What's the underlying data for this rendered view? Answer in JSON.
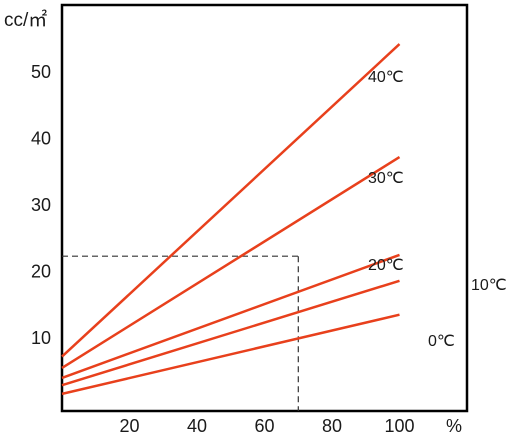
{
  "chart_data": {
    "type": "line",
    "title": "",
    "xlabel": "%",
    "ylabel": "cc/㎡",
    "xlim": [
      0,
      100
    ],
    "ylim": [
      0,
      56
    ],
    "x_ticks": [
      "20",
      "40",
      "60",
      "80",
      "100"
    ],
    "y_ticks": [
      "10",
      "20",
      "30",
      "40",
      "50"
    ],
    "grid": false,
    "legend": "none",
    "line_color": "#e8401c",
    "series": [
      {
        "name": "40℃",
        "x": [
          0,
          100
        ],
        "y": [
          7.2,
          54.2
        ]
      },
      {
        "name": "30℃",
        "x": [
          0,
          100
        ],
        "y": [
          5.5,
          37.2
        ]
      },
      {
        "name": "20℃",
        "x": [
          0,
          100
        ],
        "y": [
          4.0,
          22.5
        ]
      },
      {
        "name": "10℃",
        "x": [
          0,
          100
        ],
        "y": [
          2.9,
          18.6
        ]
      },
      {
        "name": "0℃",
        "x": [
          0,
          100
        ],
        "y": [
          1.6,
          13.5
        ]
      }
    ],
    "guide": {
      "x": 70,
      "y": 22.3,
      "style": "dashed"
    }
  }
}
